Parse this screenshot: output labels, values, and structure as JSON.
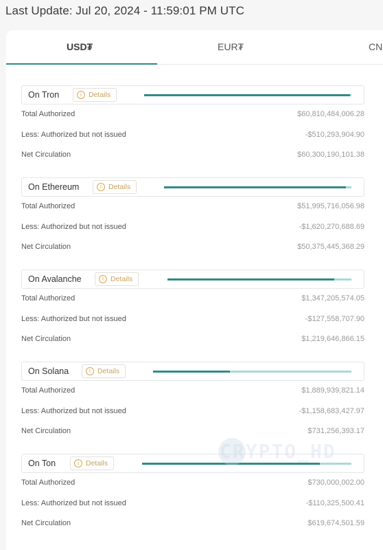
{
  "last_update": "Last Update: Jul 20, 2024 - 11:59:01 PM UTC",
  "tabs": [
    {
      "label": "USD₮"
    },
    {
      "label": "EUR₮"
    },
    {
      "label": "CN"
    }
  ],
  "details_label": "Details",
  "row_labels": {
    "authorized": "Total Authorized",
    "not_issued": "Less: Authorized but not issued",
    "net": "Net Circulation"
  },
  "chains": [
    {
      "name": "On Tron",
      "total_authorized": "$60,810,484,006.28",
      "not_issued": "-$510,293,904.90",
      "net_circulation": "$60,300,190,101.38",
      "circulation_ratio": 0.992
    },
    {
      "name": "On Ethereum",
      "total_authorized": "$51,995,716,056.98",
      "not_issued": "-$1,620,270,688.69",
      "net_circulation": "$50,375,445,368.29",
      "circulation_ratio": 0.969
    },
    {
      "name": "On Avalanche",
      "total_authorized": "$1,347,205,574.05",
      "not_issued": "-$127,558,707.90",
      "net_circulation": "$1,219,646,866.15",
      "circulation_ratio": 0.905
    },
    {
      "name": "On Solana",
      "total_authorized": "$1,889,939,821.14",
      "not_issued": "-$1,158,683,427.97",
      "net_circulation": "$731,256,393.17",
      "circulation_ratio": 0.387
    },
    {
      "name": "On Ton",
      "total_authorized": "$730,000,002.00",
      "not_issued": "-$110,325,500.41",
      "net_circulation": "$619,674,501.59",
      "circulation_ratio": 0.849
    }
  ],
  "watermark": "CRYPTO_HD"
}
